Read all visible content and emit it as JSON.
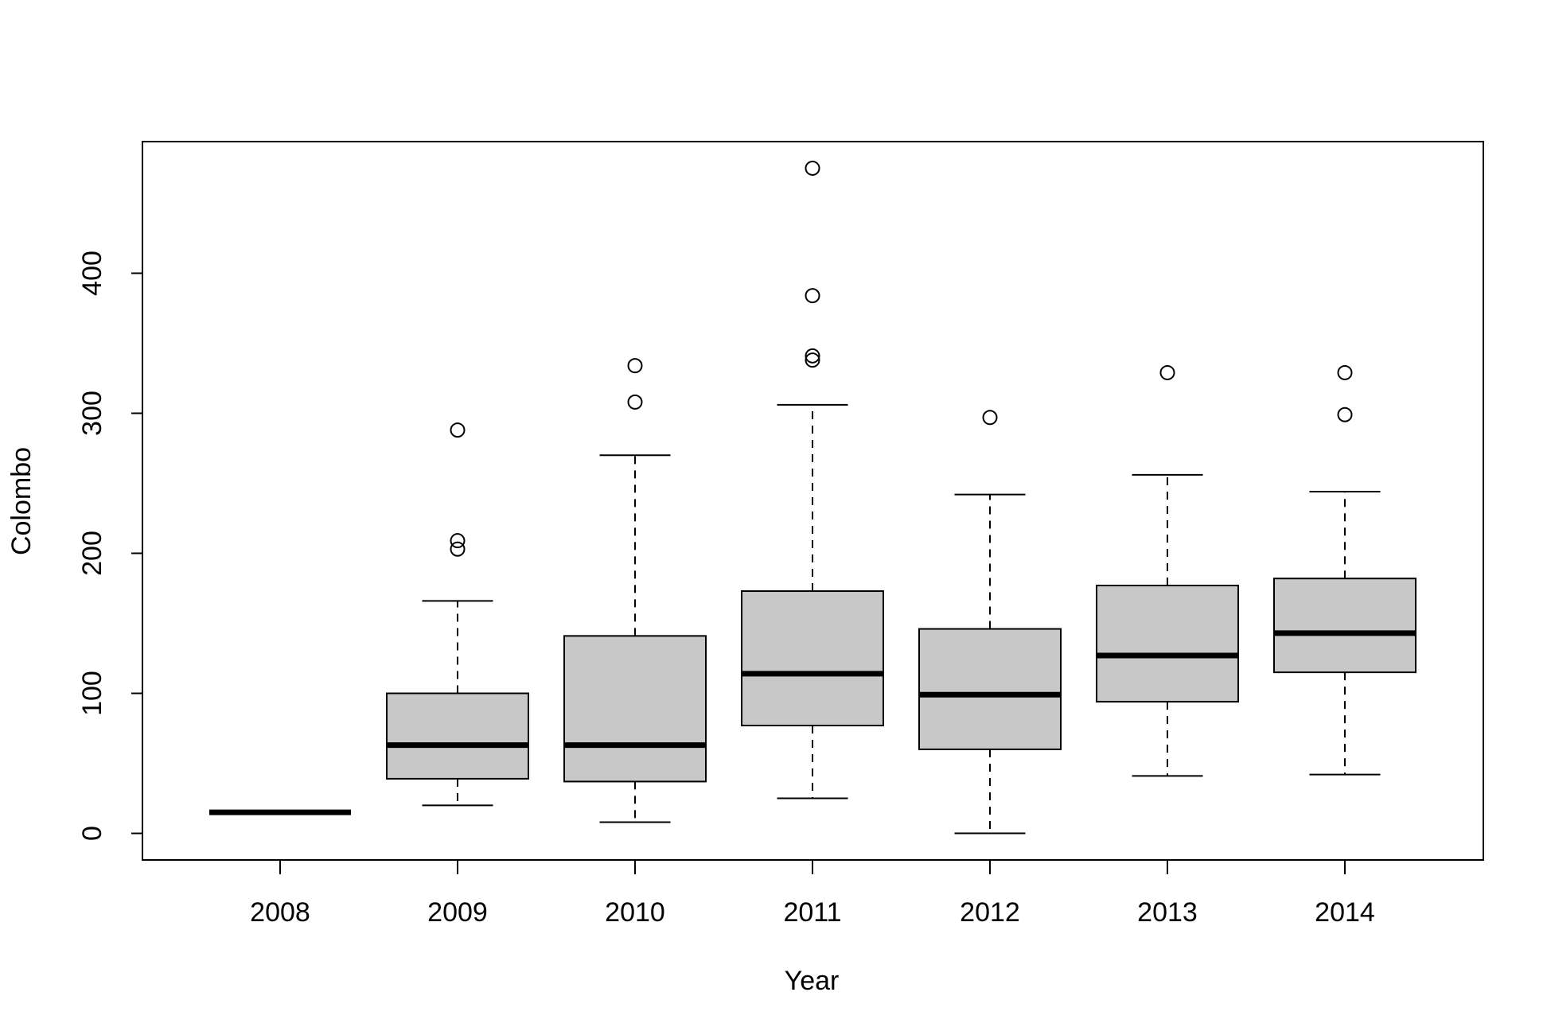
{
  "chart_data": {
    "type": "boxplot",
    "title": "",
    "xlabel": "Year",
    "ylabel": "Colombo",
    "ylim": [
      -19,
      494
    ],
    "yticks": [
      0,
      100,
      200,
      300,
      400
    ],
    "grid": false,
    "legend": "none",
    "colors": {
      "box_fill": "#c8c8c8",
      "stroke": "#000000",
      "background": "#ffffff"
    },
    "categories": [
      "2008",
      "2009",
      "2010",
      "2011",
      "2012",
      "2013",
      "2014"
    ],
    "boxes": [
      {
        "category": "2008",
        "whisker_low": 15,
        "q1": 15,
        "median": 15,
        "q3": 15,
        "whisker_high": 15,
        "outliers": []
      },
      {
        "category": "2009",
        "whisker_low": 20,
        "q1": 39,
        "median": 63,
        "q3": 100,
        "whisker_high": 166,
        "outliers": [
          203,
          209,
          288
        ]
      },
      {
        "category": "2010",
        "whisker_low": 8,
        "q1": 37,
        "median": 63,
        "q3": 141,
        "whisker_high": 270,
        "outliers": [
          308,
          334
        ]
      },
      {
        "category": "2011",
        "whisker_low": 25,
        "q1": 77,
        "median": 114,
        "q3": 173,
        "whisker_high": 306,
        "outliers": [
          338,
          341,
          384,
          475
        ]
      },
      {
        "category": "2012",
        "whisker_low": 0,
        "q1": 60,
        "median": 99,
        "q3": 146,
        "whisker_high": 242,
        "outliers": [
          297
        ]
      },
      {
        "category": "2013",
        "whisker_low": 41,
        "q1": 94,
        "median": 127,
        "q3": 177,
        "whisker_high": 256,
        "outliers": [
          329
        ]
      },
      {
        "category": "2014",
        "whisker_low": 42,
        "q1": 115,
        "median": 143,
        "q3": 182,
        "whisker_high": 244,
        "outliers": [
          299,
          329
        ]
      }
    ]
  }
}
